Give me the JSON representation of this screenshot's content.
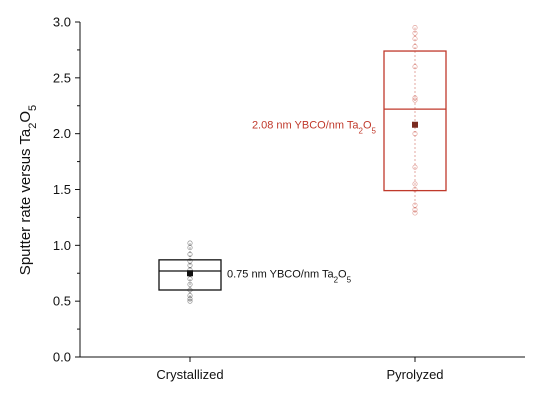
{
  "chart_data": {
    "type": "box",
    "ylabel": {
      "main": "Sputter rate versus Ta",
      "sub1": "2",
      "mid": "O",
      "sub2": "5"
    },
    "ylim": [
      0.0,
      3.0
    ],
    "yticks": [
      "0.0",
      "0.5",
      "1.0",
      "1.5",
      "2.0",
      "2.5",
      "3.0"
    ],
    "categories": [
      "Crystallized",
      "Pyrolyzed"
    ],
    "boxes": [
      {
        "category": "Crystallized",
        "q1": 0.6,
        "median": 0.77,
        "q3": 0.87,
        "mean": 0.75,
        "whisker_low": 0.5,
        "whisker_high": 1.02,
        "points": [
          0.5,
          0.52,
          0.55,
          0.6,
          0.65,
          0.7,
          0.74,
          0.78,
          0.82,
          0.86,
          0.92,
          0.98,
          1.02
        ],
        "color": "#111111",
        "annotation": {
          "main": "0.75 nm YBCO/nm Ta",
          "sub1": "2",
          "mid": "O",
          "sub2": "5"
        },
        "annotation_side": "right"
      },
      {
        "category": "Pyrolyzed",
        "q1": 1.49,
        "median": 2.22,
        "q3": 2.74,
        "mean": 2.08,
        "whisker_low": 1.29,
        "whisker_high": 2.95,
        "points": [
          1.29,
          1.32,
          1.36,
          1.5,
          1.55,
          1.7,
          2.0,
          2.3,
          2.32,
          2.6,
          2.78,
          2.85,
          2.9,
          2.95
        ],
        "color": "#c0392b",
        "annotation": {
          "main": "2.08 nm YBCO/nm Ta",
          "sub1": "2",
          "mid": "O",
          "sub2": "5"
        },
        "annotation_side": "left"
      }
    ],
    "grid": false
  }
}
